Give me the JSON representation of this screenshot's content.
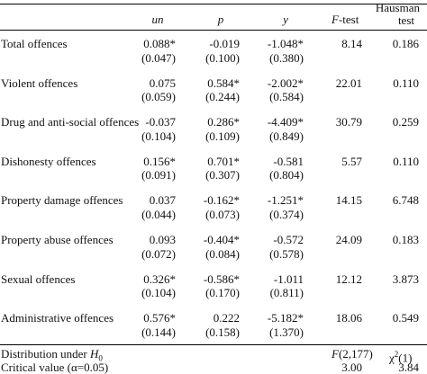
{
  "header": {
    "un": "un",
    "p": "p",
    "y": "y",
    "ftest": "-test",
    "ftest_italic": "F",
    "hausman_line1": "Hausman",
    "hausman_line2": "test"
  },
  "rows": [
    {
      "label": "Total offences",
      "un": "0.088*",
      "p": "-0.019",
      "y": "-1.048*",
      "un_se": "(0.047)",
      "p_se": "(0.100)",
      "y_se": "(0.380)",
      "ftest": "8.14",
      "hausman": "0.186"
    },
    {
      "label": "Violent offences",
      "un": "0.075",
      "p": "0.584*",
      "y": "-2.002*",
      "un_se": "(0.059)",
      "p_se": "(0.244)",
      "y_se": "(0.584)",
      "ftest": "22.01",
      "hausman": "0.110"
    },
    {
      "label": "Drug and anti-social offences",
      "un": "-0.037",
      "p": "0.286*",
      "y": "-4.409*",
      "un_se": "(0.104)",
      "p_se": "(0.109)",
      "y_se": "(0.849)",
      "ftest": "30.79",
      "hausman": "0.259"
    },
    {
      "label": "Dishonesty offences",
      "un": "0.156*",
      "p": "0.701*",
      "y": "-0.581",
      "un_se": "(0.091)",
      "p_se": "(0.307)",
      "y_se": "(0.804)",
      "ftest": "5.57",
      "hausman": "0.110"
    },
    {
      "label": "Property damage offences",
      "un": "0.037",
      "p": "-0.162*",
      "y": "-1.251*",
      "un_se": "(0.044)",
      "p_se": "(0.073)",
      "y_se": "(0.374)",
      "ftest": "14.15",
      "hausman": "6.748"
    },
    {
      "label": "Property abuse offences",
      "un": "0.093",
      "p": "-0.404*",
      "y": "-0.572",
      "un_se": "(0.072)",
      "p_se": "(0.084)",
      "y_se": "(0.578)",
      "ftest": "24.09",
      "hausman": "0.183"
    },
    {
      "label": "Sexual offences",
      "un": "0.326*",
      "p": "-0.586*",
      "y": "-1.011",
      "un_se": "(0.104)",
      "p_se": "(0.170)",
      "y_se": "(0.811)",
      "ftest": "12.12",
      "hausman": "3.873"
    },
    {
      "label": "Administrative offences",
      "un": "0.576*",
      "p": "0.222",
      "y": "-5.182*",
      "un_se": "(0.144)",
      "p_se": "(0.158)",
      "y_se": "(1.370)",
      "ftest": "18.06",
      "hausman": "0.549"
    }
  ],
  "footer": {
    "dist_label": "Distribution under ",
    "dist_label_italic": "H",
    "dist_label_sub": "0",
    "dist_ftest": "(2,177)",
    "dist_ftest_italic": "F",
    "dist_hausman": "χ",
    "dist_hausman_sup": "2",
    "dist_hausman_tail": "(1)",
    "crit_label": "Critical value (α=0.05)",
    "crit_ftest": "3.00",
    "crit_hausman": "3.84"
  }
}
